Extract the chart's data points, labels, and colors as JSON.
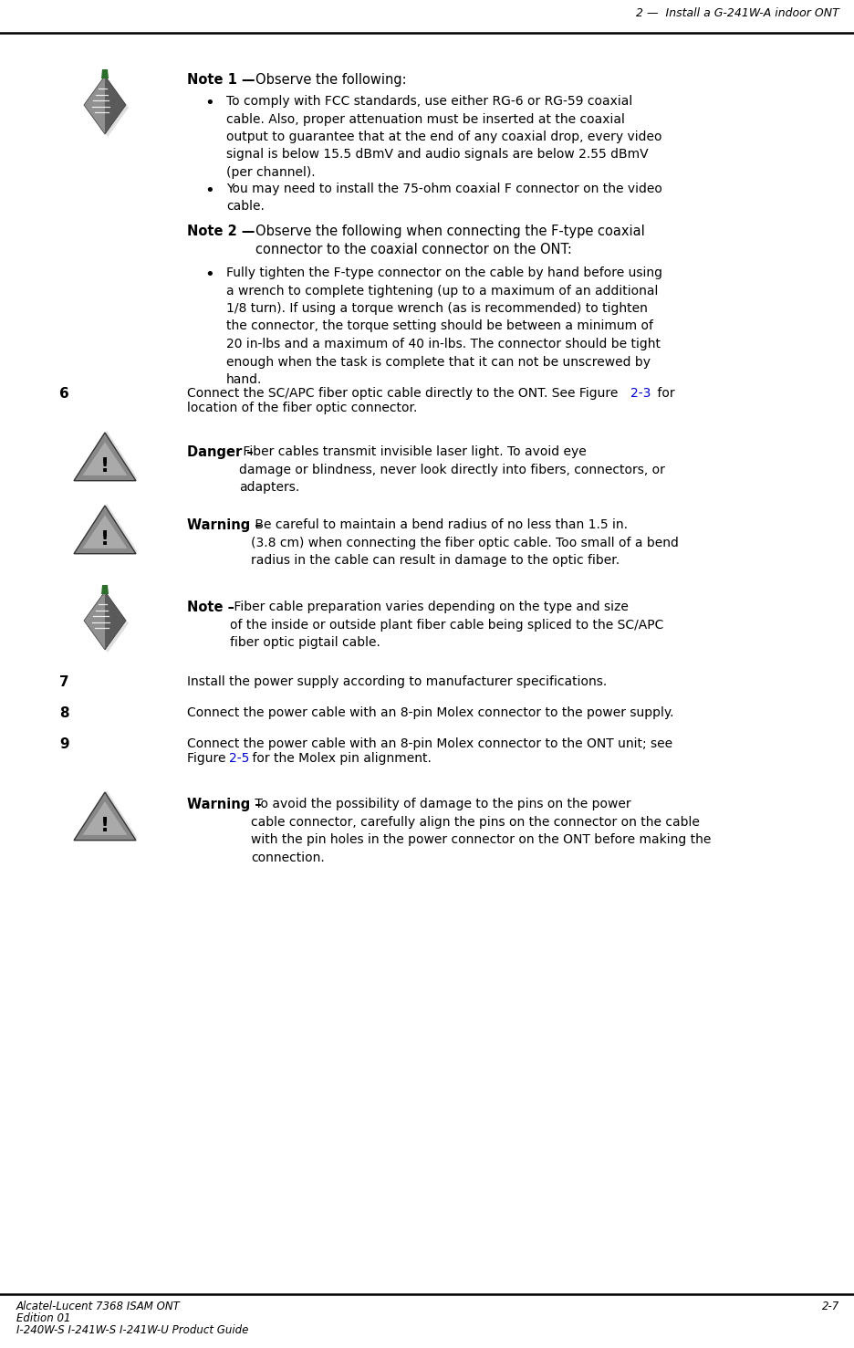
{
  "page_title": "2 —  Install a G-241W-A indoor ONT",
  "footer_left_line1": "Alcatel-Lucent 7368 ISAM ONT",
  "footer_left_line2": "Edition 01",
  "footer_left_line3": "I-240W-S I-241W-S I-241W-U Product Guide",
  "footer_right": "2-7",
  "bg_color": "#ffffff",
  "note1_header_bold": "Note 1 —",
  "note1_header_normal": "Observe the following:",
  "note1_bullet1": "To comply with FCC standards, use either RG-6 or RG-59 coaxial\ncable. Also, proper attenuation must be inserted at the coaxial\noutput to guarantee that at the end of any coaxial drop, every video\nsignal is below 15.5 dBmV and audio signals are below 2.55 dBmV\n(per channel).",
  "note1_bullet2": "You may need to install the 75-ohm coaxial F connector on the video\ncable.",
  "note2_header_bold": "Note 2 —",
  "note2_header_normal": "Observe the following when connecting the F-type coaxial\nconnector to the coaxial connector on the ONT:",
  "note2_bullet1": "Fully tighten the F-type connector on the cable by hand before using\na wrench to complete tightening (up to a maximum of an additional\n1/8 turn). If using a torque wrench (as is recommended) to tighten\nthe connector, the torque setting should be between a minimum of\n20 in-lbs and a maximum of 40 in-lbs. The connector should be tight\nenough when the task is complete that it can not be unscrewed by\nhand.",
  "step6_num": "6",
  "step6_text_pre": "Connect the SC/APC fiber optic cable directly to the ONT. See Figure ",
  "step6_link": "2-3",
  "step6_text_post": " for\nlocation of the fiber optic connector.",
  "danger_bold": "Danger –",
  "danger_normal": "  Fiber cables transmit invisible laser light. To avoid eye\ndamage or blindness, never look directly into fibers, connectors, or\nadapters.",
  "warning1_bold": "Warning –",
  "warning1_normal": "  Be careful to maintain a bend radius of no less than 1.5 in.\n(3.8 cm) when connecting the fiber optic cable. Too small of a bend\nradius in the cable can result in damage to the optic fiber.",
  "note3_bold": "Note –",
  "note3_normal": "  Fiber cable preparation varies depending on the type and size\nof the inside or outside plant fiber cable being spliced to the SC/APC\nfiber optic pigtail cable.",
  "step7_num": "7",
  "step7_text": "Install the power supply according to manufacturer specifications.",
  "step8_num": "8",
  "step8_text": "Connect the power cable with an 8-pin Molex connector to the power supply.",
  "step9_num": "9",
  "step9_text_pre": "Connect the power cable with an 8-pin Molex connector to the ONT unit; see\nFigure ",
  "step9_link": "2-5",
  "step9_text_post": " for the Molex pin alignment.",
  "warning2_bold": "Warning –",
  "warning2_normal": "  To avoid the possibility of damage to the pins on the power\ncable connector, carefully align the pins on the connector on the cable\nwith the pin holes in the power connector on the ONT before making the\nconnection.",
  "link_color": "#0000cc",
  "text_color": "#000000"
}
